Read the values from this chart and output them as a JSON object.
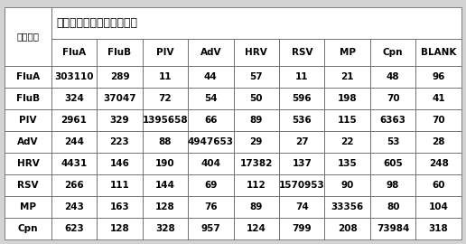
{
  "title": "检测样本中所含病原体类型",
  "row_header_title": "检测探针",
  "col_headers": [
    "FluA",
    "FluB",
    "PIV",
    "AdV",
    "HRV",
    "RSV",
    "MP",
    "Cpn",
    "BLANK"
  ],
  "row_headers": [
    "FluA",
    "FluB",
    "PIV",
    "AdV",
    "HRV",
    "RSV",
    "MP",
    "Cpn"
  ],
  "table_data": [
    [
      "303110",
      "289",
      "11",
      "44",
      "57",
      "11",
      "21",
      "48",
      "96"
    ],
    [
      "324",
      "37047",
      "72",
      "54",
      "50",
      "596",
      "198",
      "70",
      "41"
    ],
    [
      "2961",
      "329",
      "1395658",
      "66",
      "89",
      "536",
      "115",
      "6363",
      "70"
    ],
    [
      "244",
      "223",
      "88",
      "4947653",
      "29",
      "27",
      "22",
      "53",
      "28"
    ],
    [
      "4431",
      "146",
      "190",
      "404",
      "17382",
      "137",
      "135",
      "605",
      "248"
    ],
    [
      "266",
      "111",
      "144",
      "69",
      "112",
      "1570953",
      "90",
      "98",
      "60"
    ],
    [
      "243",
      "163",
      "128",
      "76",
      "89",
      "74",
      "33356",
      "80",
      "104"
    ],
    [
      "623",
      "128",
      "328",
      "957",
      "124",
      "799",
      "208",
      "73984",
      "318"
    ]
  ],
  "bg_color": "#d3d3d3",
  "cell_bg": "#ffffff",
  "border_color": "#555555",
  "text_color": "#000000",
  "font_size": 7.5,
  "title_font_size": 9
}
